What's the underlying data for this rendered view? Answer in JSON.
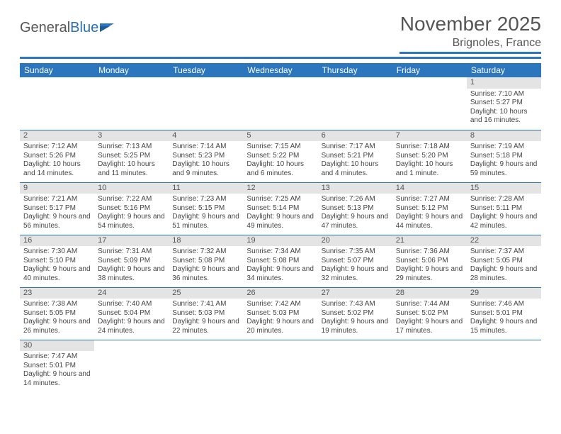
{
  "brand": {
    "first": "General",
    "second": "Blue"
  },
  "title": "November 2025",
  "location": "Brignoles, France",
  "colors": {
    "header_bg": "#2b76bd",
    "header_text": "#ffffff",
    "daynum_bg": "#e4e4e4",
    "row_divider": "#2b76bd",
    "body_text": "#444444",
    "title_text": "#555555"
  },
  "typography": {
    "title_fontsize": 28,
    "location_fontsize": 16,
    "dayheader_fontsize": 12,
    "daynum_fontsize": 11,
    "body_fontsize": 10
  },
  "day_headers": [
    "Sunday",
    "Monday",
    "Tuesday",
    "Wednesday",
    "Thursday",
    "Friday",
    "Saturday"
  ],
  "weeks": [
    [
      null,
      null,
      null,
      null,
      null,
      null,
      {
        "n": "1",
        "sunrise": "7:10 AM",
        "sunset": "5:27 PM",
        "daylight": "10 hours and 16 minutes."
      }
    ],
    [
      {
        "n": "2",
        "sunrise": "7:12 AM",
        "sunset": "5:26 PM",
        "daylight": "10 hours and 14 minutes."
      },
      {
        "n": "3",
        "sunrise": "7:13 AM",
        "sunset": "5:25 PM",
        "daylight": "10 hours and 11 minutes."
      },
      {
        "n": "4",
        "sunrise": "7:14 AM",
        "sunset": "5:23 PM",
        "daylight": "10 hours and 9 minutes."
      },
      {
        "n": "5",
        "sunrise": "7:15 AM",
        "sunset": "5:22 PM",
        "daylight": "10 hours and 6 minutes."
      },
      {
        "n": "6",
        "sunrise": "7:17 AM",
        "sunset": "5:21 PM",
        "daylight": "10 hours and 4 minutes."
      },
      {
        "n": "7",
        "sunrise": "7:18 AM",
        "sunset": "5:20 PM",
        "daylight": "10 hours and 1 minute."
      },
      {
        "n": "8",
        "sunrise": "7:19 AM",
        "sunset": "5:18 PM",
        "daylight": "9 hours and 59 minutes."
      }
    ],
    [
      {
        "n": "9",
        "sunrise": "7:21 AM",
        "sunset": "5:17 PM",
        "daylight": "9 hours and 56 minutes."
      },
      {
        "n": "10",
        "sunrise": "7:22 AM",
        "sunset": "5:16 PM",
        "daylight": "9 hours and 54 minutes."
      },
      {
        "n": "11",
        "sunrise": "7:23 AM",
        "sunset": "5:15 PM",
        "daylight": "9 hours and 51 minutes."
      },
      {
        "n": "12",
        "sunrise": "7:25 AM",
        "sunset": "5:14 PM",
        "daylight": "9 hours and 49 minutes."
      },
      {
        "n": "13",
        "sunrise": "7:26 AM",
        "sunset": "5:13 PM",
        "daylight": "9 hours and 47 minutes."
      },
      {
        "n": "14",
        "sunrise": "7:27 AM",
        "sunset": "5:12 PM",
        "daylight": "9 hours and 44 minutes."
      },
      {
        "n": "15",
        "sunrise": "7:28 AM",
        "sunset": "5:11 PM",
        "daylight": "9 hours and 42 minutes."
      }
    ],
    [
      {
        "n": "16",
        "sunrise": "7:30 AM",
        "sunset": "5:10 PM",
        "daylight": "9 hours and 40 minutes."
      },
      {
        "n": "17",
        "sunrise": "7:31 AM",
        "sunset": "5:09 PM",
        "daylight": "9 hours and 38 minutes."
      },
      {
        "n": "18",
        "sunrise": "7:32 AM",
        "sunset": "5:08 PM",
        "daylight": "9 hours and 36 minutes."
      },
      {
        "n": "19",
        "sunrise": "7:34 AM",
        "sunset": "5:08 PM",
        "daylight": "9 hours and 34 minutes."
      },
      {
        "n": "20",
        "sunrise": "7:35 AM",
        "sunset": "5:07 PM",
        "daylight": "9 hours and 32 minutes."
      },
      {
        "n": "21",
        "sunrise": "7:36 AM",
        "sunset": "5:06 PM",
        "daylight": "9 hours and 29 minutes."
      },
      {
        "n": "22",
        "sunrise": "7:37 AM",
        "sunset": "5:05 PM",
        "daylight": "9 hours and 28 minutes."
      }
    ],
    [
      {
        "n": "23",
        "sunrise": "7:38 AM",
        "sunset": "5:05 PM",
        "daylight": "9 hours and 26 minutes."
      },
      {
        "n": "24",
        "sunrise": "7:40 AM",
        "sunset": "5:04 PM",
        "daylight": "9 hours and 24 minutes."
      },
      {
        "n": "25",
        "sunrise": "7:41 AM",
        "sunset": "5:03 PM",
        "daylight": "9 hours and 22 minutes."
      },
      {
        "n": "26",
        "sunrise": "7:42 AM",
        "sunset": "5:03 PM",
        "daylight": "9 hours and 20 minutes."
      },
      {
        "n": "27",
        "sunrise": "7:43 AM",
        "sunset": "5:02 PM",
        "daylight": "9 hours and 19 minutes."
      },
      {
        "n": "28",
        "sunrise": "7:44 AM",
        "sunset": "5:02 PM",
        "daylight": "9 hours and 17 minutes."
      },
      {
        "n": "29",
        "sunrise": "7:46 AM",
        "sunset": "5:01 PM",
        "daylight": "9 hours and 15 minutes."
      }
    ],
    [
      {
        "n": "30",
        "sunrise": "7:47 AM",
        "sunset": "5:01 PM",
        "daylight": "9 hours and 14 minutes."
      },
      null,
      null,
      null,
      null,
      null,
      null
    ]
  ],
  "labels": {
    "sunrise_prefix": "Sunrise: ",
    "sunset_prefix": "Sunset: ",
    "daylight_prefix": "Daylight: "
  }
}
